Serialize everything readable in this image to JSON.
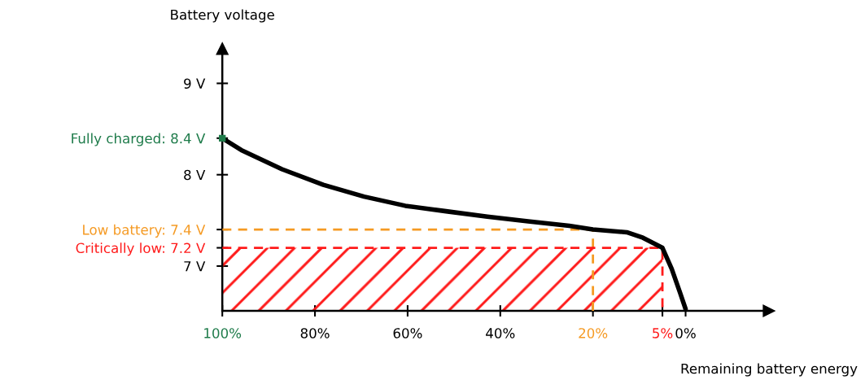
{
  "chart_data": {
    "type": "line",
    "xlabel": "Remaining battery energy",
    "ylabel": "Battery voltage",
    "xlim": [
      100,
      -18
    ],
    "ylim": [
      6.51,
      9.38
    ],
    "xticks": [
      {
        "value": 100,
        "label": "100%"
      },
      {
        "value": 80,
        "label": "80%"
      },
      {
        "value": 60,
        "label": "60%"
      },
      {
        "value": 40,
        "label": "40%"
      },
      {
        "value": 20,
        "label": "20%"
      },
      {
        "value": 5,
        "label": "5%"
      },
      {
        "value": 0,
        "label": "0%"
      }
    ],
    "yticks": [
      {
        "value": 7,
        "label": "7 V"
      },
      {
        "value": 7.2,
        "label": "Critically low: 7.2 V"
      },
      {
        "value": 7.4,
        "label": "Low battery: 7.4 V"
      },
      {
        "value": 8,
        "label": "8 V"
      },
      {
        "value": 8.4,
        "label": "Fully charged: 8.4 V"
      },
      {
        "value": 9,
        "label": "9 V"
      }
    ],
    "x": [
      100,
      95.9,
      87.1,
      78.2,
      69.4,
      60.5,
      51.7,
      42.8,
      34.0,
      25.1,
      20,
      12.7,
      9.2,
      5,
      3,
      1.2,
      0
    ],
    "series": [
      {
        "color": "#000000",
        "values": [
          8.4,
          8.27,
          8.06,
          7.89,
          7.76,
          7.66,
          7.6,
          7.54,
          7.49,
          7.44,
          7.4,
          7.37,
          7.31,
          7.2,
          6.97,
          6.71,
          6.53
        ]
      },
      {
        "type": "line",
        "color": "#f59a23",
        "line_style": "dashed",
        "x": [
          100,
          20,
          20
        ],
        "values": [
          7.4,
          7.4,
          6.51
        ]
      },
      {
        "type": "line",
        "color": "#ff1a1a",
        "line_style": "dashed",
        "x": [
          100,
          5,
          5
        ],
        "values": [
          7.2,
          7.2,
          6.51
        ]
      },
      {
        "type": "scatter",
        "color": "#1e7b4a",
        "marker": "square",
        "x": [
          100
        ],
        "values": [
          8.4
        ]
      }
    ],
    "grid": false
  }
}
